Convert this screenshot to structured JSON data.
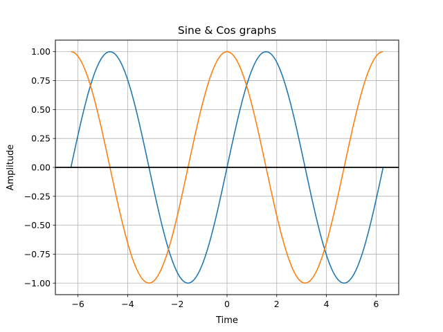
{
  "chart_data": {
    "type": "line",
    "title": "Sine & Cos graphs",
    "xlabel": "Time",
    "ylabel": "Amplitude",
    "xlim": [
      -6.91,
      6.91
    ],
    "ylim": [
      -1.1,
      1.1
    ],
    "grid": true,
    "legend": "none",
    "x_ticks": [
      -6,
      -4,
      -2,
      0,
      2,
      4,
      6
    ],
    "x_tick_labels": [
      "−6",
      "−4",
      "−2",
      "0",
      "2",
      "4",
      "6"
    ],
    "y_ticks": [
      1.0,
      0.75,
      0.5,
      0.25,
      0.0,
      -0.25,
      -0.5,
      -0.75,
      -1.0
    ],
    "y_tick_labels": [
      "1.00",
      "0.75",
      "0.50",
      "0.25",
      "0.00",
      "−0.25",
      "−0.50",
      "−0.75",
      "−1.00"
    ],
    "x": [
      -6.28,
      -5.5,
      -4.71,
      -3.93,
      -3.14,
      -2.36,
      -1.57,
      -0.79,
      0.0,
      0.79,
      1.57,
      2.36,
      3.14,
      3.93,
      4.71,
      5.5,
      6.28
    ],
    "series": [
      {
        "color": "#1f77b4",
        "function": "sin",
        "values": [
          0.0,
          0.71,
          1.0,
          0.71,
          0.0,
          -0.71,
          -1.0,
          -0.71,
          0.0,
          0.71,
          1.0,
          0.71,
          0.0,
          -0.71,
          -1.0,
          -0.71,
          0.0
        ]
      },
      {
        "color": "#ff7f0e",
        "function": "cos",
        "values": [
          1.0,
          0.71,
          0.0,
          -0.71,
          -1.0,
          -0.71,
          0.0,
          0.71,
          1.0,
          0.71,
          0.0,
          -0.71,
          -1.0,
          -0.71,
          0.0,
          0.71,
          1.0
        ]
      }
    ],
    "reference_lines": [
      {
        "axis": "y",
        "value": 0,
        "color": "#000000"
      }
    ]
  }
}
